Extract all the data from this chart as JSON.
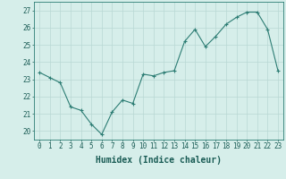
{
  "x": [
    0,
    1,
    2,
    3,
    4,
    5,
    6,
    7,
    8,
    9,
    10,
    11,
    12,
    13,
    14,
    15,
    16,
    17,
    18,
    19,
    20,
    21,
    22,
    23
  ],
  "y": [
    23.4,
    23.1,
    22.8,
    21.4,
    21.2,
    20.4,
    19.8,
    21.1,
    21.8,
    21.6,
    23.3,
    23.2,
    23.4,
    23.5,
    25.2,
    25.9,
    24.9,
    25.5,
    26.2,
    26.6,
    26.9,
    26.9,
    25.9,
    23.5
  ],
  "xlabel": "Humidex (Indice chaleur)",
  "ylim": [
    19.5,
    27.5
  ],
  "xlim": [
    -0.5,
    23.5
  ],
  "yticks": [
    20,
    21,
    22,
    23,
    24,
    25,
    26,
    27
  ],
  "xticks": [
    0,
    1,
    2,
    3,
    4,
    5,
    6,
    7,
    8,
    9,
    10,
    11,
    12,
    13,
    14,
    15,
    16,
    17,
    18,
    19,
    20,
    21,
    22,
    23
  ],
  "line_color": "#2d7d74",
  "marker_color": "#2d7d74",
  "bg_color": "#d6eeea",
  "grid_color": "#b8d8d4",
  "axis_color": "#2d7d74",
  "label_color": "#1a5c55",
  "tick_color": "#1a5c55",
  "font_size_axis": 5.5,
  "font_size_label": 7
}
